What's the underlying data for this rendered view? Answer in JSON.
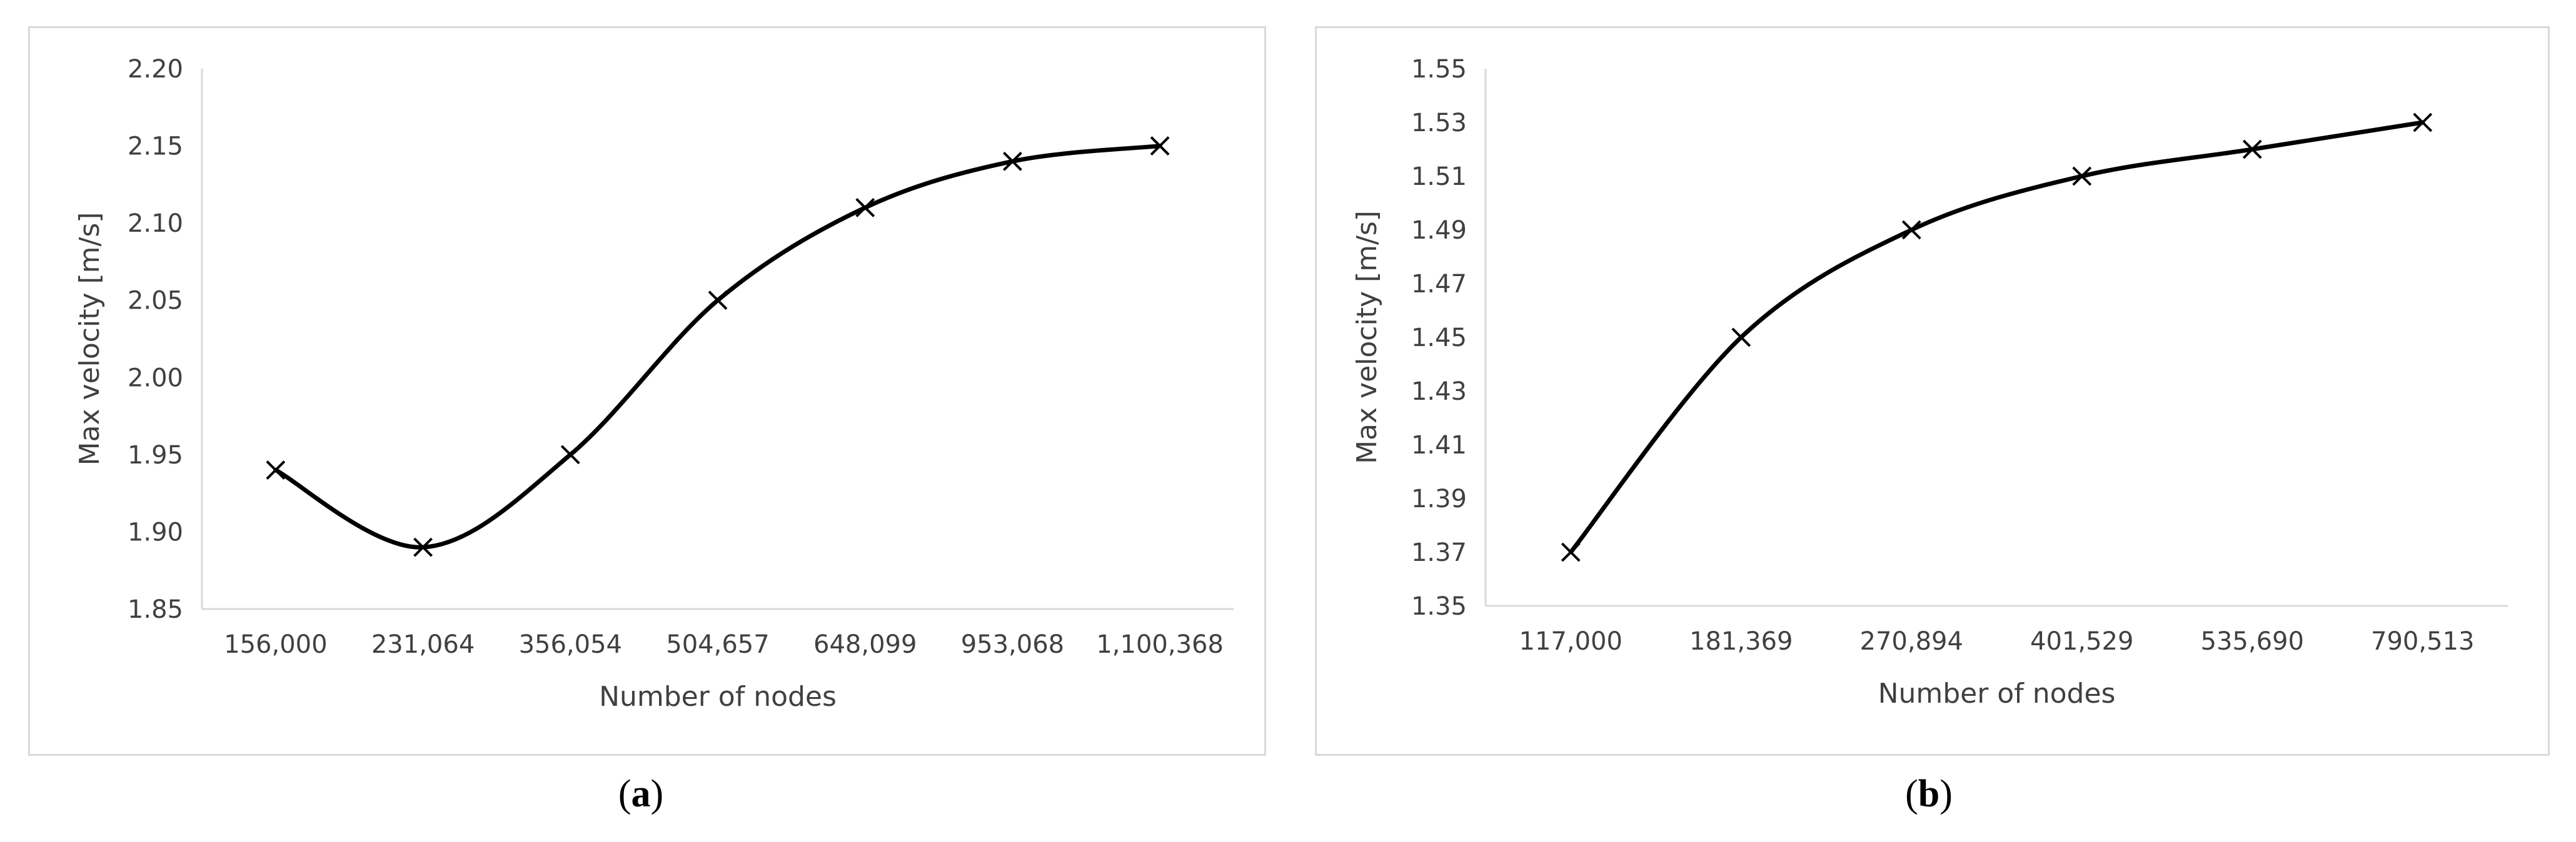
{
  "chart_data": [
    {
      "id": "a",
      "type": "line",
      "title": "",
      "xlabel": "Number of nodes",
      "ylabel": "Max velocity [m/s]",
      "categories": [
        "156,000",
        "231,064",
        "356,054",
        "504,657",
        "648,099",
        "953,068",
        "1,100,368"
      ],
      "series": [
        {
          "values": [
            1.94,
            1.89,
            1.95,
            2.05,
            2.11,
            2.14,
            2.15
          ]
        }
      ],
      "ylim": [
        1.85,
        2.2
      ],
      "yticks": [
        "1.85",
        "1.90",
        "1.95",
        "2.00",
        "2.05",
        "2.10",
        "2.15",
        "2.20"
      ],
      "grid": false,
      "marker": "x",
      "line_color": "#000000"
    },
    {
      "id": "b",
      "type": "line",
      "title": "",
      "xlabel": "Number of nodes",
      "ylabel": "Max velocity [m/s]",
      "categories": [
        "117,000",
        "181,369",
        "270,894",
        "401,529",
        "535,690",
        "790,513"
      ],
      "series": [
        {
          "values": [
            1.37,
            1.45,
            1.49,
            1.51,
            1.52,
            1.53
          ]
        }
      ],
      "ylim": [
        1.35,
        1.55
      ],
      "yticks": [
        "1.35",
        "1.37",
        "1.39",
        "1.41",
        "1.43",
        "1.45",
        "1.47",
        "1.49",
        "1.51",
        "1.53",
        "1.55"
      ],
      "grid": false,
      "marker": "x",
      "line_color": "#000000"
    }
  ],
  "captions": {
    "a": {
      "open": "(",
      "letter": "a",
      "close": ")"
    },
    "b": {
      "open": "(",
      "letter": "b",
      "close": ")"
    }
  }
}
